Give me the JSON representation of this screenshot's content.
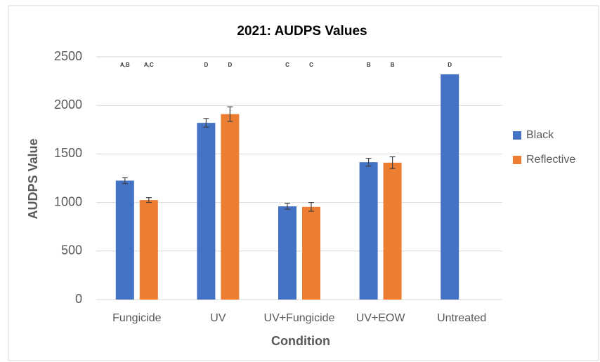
{
  "chart_data": {
    "type": "bar",
    "title": "2021: AUDPS Values",
    "x_label": "Condition",
    "y_label": "AUDPS Value",
    "categories": [
      "Fungicide",
      "UV",
      "UV+Fungicide",
      "UV+EOW",
      "Untreated"
    ],
    "series": [
      {
        "name": "Black",
        "color": "#4472c4",
        "values": [
          1225,
          1820,
          960,
          1415,
          2320
        ],
        "errors": [
          30,
          45,
          30,
          40,
          null
        ],
        "annotations": [
          "A,B",
          "D",
          "C",
          "B",
          "D"
        ]
      },
      {
        "name": "Reflective",
        "color": "#ed7d31",
        "values": [
          1025,
          1910,
          955,
          1410,
          null
        ],
        "errors": [
          25,
          75,
          45,
          60,
          null
        ],
        "annotations": [
          "A,C",
          "D",
          "C",
          "B",
          null
        ]
      }
    ],
    "ylim": [
      0,
      2500
    ],
    "yticks": [
      0,
      500,
      1000,
      1500,
      2000,
      2500
    ],
    "grid": true,
    "legend": "right"
  }
}
